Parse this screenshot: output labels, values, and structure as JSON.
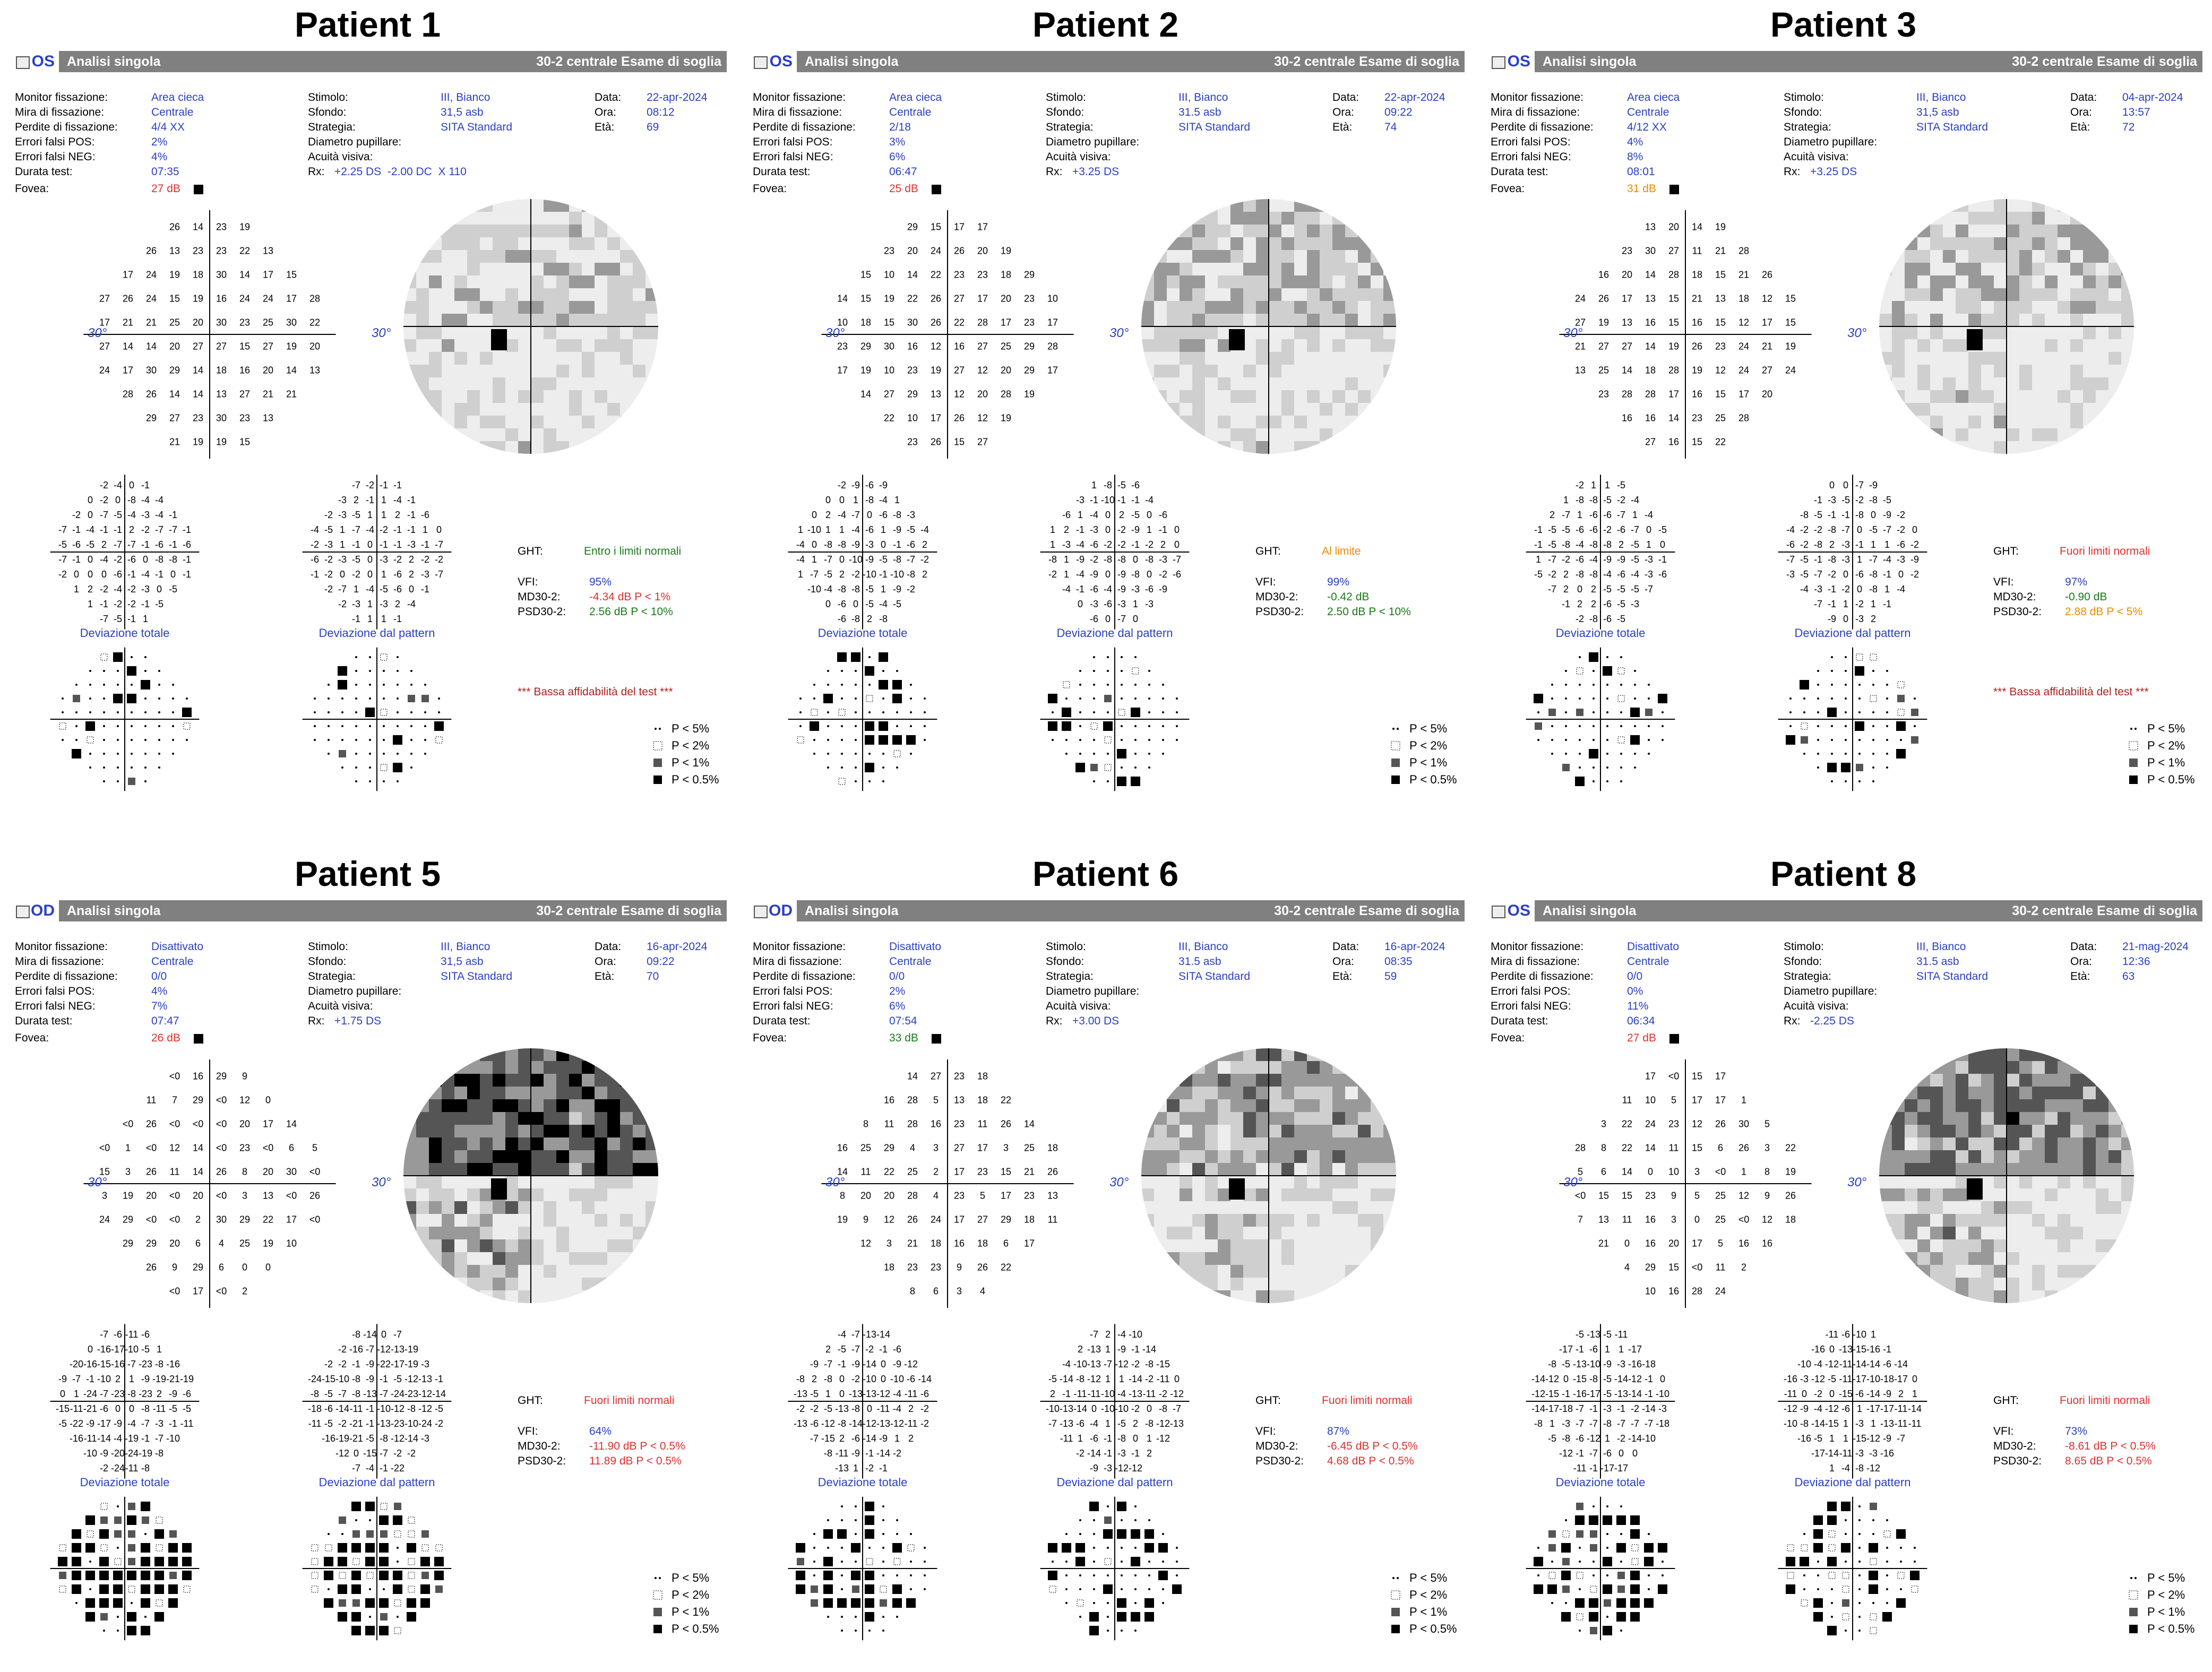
{
  "header_labels": {
    "monitor": "Monitor fissazione:",
    "mira": "Mira di fissazione:",
    "perdite": "Perdite di fissazione:",
    "fpos": "Errori falsi POS:",
    "fneg": "Errori falsi NEG:",
    "durata": "Durata test:",
    "fovea": "Fovea:",
    "stimolo": "Stimolo:",
    "sfondo": "Sfondo:",
    "strategia": "Strategia:",
    "diametro": "Diametro pupillare:",
    "acuita": "Acuità visiva:",
    "rx": "Rx:",
    "data": "Data:",
    "ora": "Ora:",
    "eta": "Età:",
    "ght": "GHT:",
    "vfi": "VFI:",
    "md": "MD30-2:",
    "psd": "PSD30-2:",
    "dev_totale": "Deviazione totale",
    "dev_pattern": "Deviazione dal pattern",
    "deg": "30°",
    "bar_left": "Analisi singola",
    "bar_right": "30-2 centrale Esame di soglia"
  },
  "legend": [
    "P < 5%",
    "P < 2%",
    "P < 1%",
    "P < 0.5%"
  ],
  "colors": {
    "blue": "#2a3fc4",
    "red": "#e03030",
    "green": "#1a7a1a",
    "orange": "#f08a00",
    "bar": "#808080"
  },
  "patients": [
    {
      "title": "Patient 1",
      "eye": "OS",
      "monitor": "Area cieca",
      "mira": "Centrale",
      "perdite": "4/4 XX",
      "fpos": "2%",
      "fneg": "4%",
      "durata": "07:35",
      "fovea": "27 dB",
      "fovea_color": "red",
      "stimolo": "III, Bianco",
      "sfondo": "31,5 asb",
      "strategia": "SITA Standard",
      "diametro": "",
      "acuita": "",
      "rx": "+2.25 DS  -2.00 DC  X 110",
      "data": "22-apr-2024",
      "ora": "08:12",
      "eta": "69",
      "ght": "Entro i limiti normali",
      "ght_color": "green",
      "vfi": "95%",
      "md": "-4.34 dB P < 1%",
      "md_color": "red",
      "psd": "2.56 dB P < 10%",
      "psd_color": "green",
      "warning": "*** Bassa affidabilità del test ***"
    },
    {
      "title": "Patient 2",
      "eye": "OS",
      "monitor": "Area cieca",
      "mira": "Centrale",
      "perdite": "2/18",
      "fpos": "3%",
      "fneg": "6%",
      "durata": "06:47",
      "fovea": "25 dB",
      "fovea_color": "red",
      "stimolo": "III, Bianco",
      "sfondo": "31.5 asb",
      "strategia": "SITA Standard",
      "diametro": "",
      "acuita": "",
      "rx": "+3.25 DS",
      "data": "22-apr-2024",
      "ora": "09:22",
      "eta": "74",
      "ght": "Al limite",
      "ght_color": "orange",
      "vfi": "99%",
      "md": "-0.42 dB",
      "md_color": "green",
      "psd": "2.50 dB P < 10%",
      "psd_color": "green",
      "warning": ""
    },
    {
      "title": "Patient 3",
      "eye": "OS",
      "monitor": "Area cieca",
      "mira": "Centrale",
      "perdite": "4/12 XX",
      "fpos": "4%",
      "fneg": "8%",
      "durata": "08:01",
      "fovea": "31 dB",
      "fovea_color": "orange",
      "stimolo": "III, Bianco",
      "sfondo": "31,5 asb",
      "strategia": "SITA Standard",
      "diametro": "",
      "acuita": "",
      "rx": "+3.25 DS",
      "data": "04-apr-2024",
      "ora": "13:57",
      "eta": "72",
      "ght": "Fuori limiti normali",
      "ght_color": "red",
      "vfi": "97%",
      "md": "-0.90 dB",
      "md_color": "green",
      "psd": "2.88 dB P < 5%",
      "psd_color": "orange",
      "warning": "*** Bassa affidabilità del test ***"
    },
    {
      "title": "Patient 5",
      "eye": "OD",
      "monitor": "Disattivato",
      "mira": "Centrale",
      "perdite": "0/0",
      "fpos": "4%",
      "fneg": "7%",
      "durata": "07:47",
      "fovea": "26 dB",
      "fovea_color": "red",
      "stimolo": "III, Bianco",
      "sfondo": "31,5 asb",
      "strategia": "SITA Standard",
      "diametro": "",
      "acuita": "",
      "rx": "+1.75 DS",
      "data": "16-apr-2024",
      "ora": "09:22",
      "eta": "70",
      "ght": "Fuori limiti normali",
      "ght_color": "red",
      "vfi": "64%",
      "md": "-11.90 dB P < 0.5%",
      "md_color": "red",
      "psd": "11.89 dB P < 0.5%",
      "psd_color": "red",
      "warning": ""
    },
    {
      "title": "Patient 6",
      "eye": "OD",
      "monitor": "Disattivato",
      "mira": "Centrale",
      "perdite": "0/0",
      "fpos": "2%",
      "fneg": "6%",
      "durata": "07:54",
      "fovea": "33 dB",
      "fovea_color": "green",
      "stimolo": "III, Bianco",
      "sfondo": "31.5 asb",
      "strategia": "SITA Standard",
      "diametro": "",
      "acuita": "",
      "rx": "+3.00 DS",
      "data": "16-apr-2024",
      "ora": "08:35",
      "eta": "59",
      "ght": "Fuori limiti normali",
      "ght_color": "red",
      "vfi": "87%",
      "md": "-6.45 dB P < 0.5%",
      "md_color": "red",
      "psd": "4.68 dB P < 0.5%",
      "psd_color": "red",
      "warning": ""
    },
    {
      "title": "Patient 8",
      "eye": "OS",
      "monitor": "Disattivato",
      "mira": "Centrale",
      "perdite": "0/0",
      "fpos": "0%",
      "fneg": "11%",
      "durata": "06:34",
      "fovea": "27 dB",
      "fovea_color": "red",
      "stimolo": "III, Bianco",
      "sfondo": "31.5 asb",
      "strategia": "SITA Standard",
      "diametro": "",
      "acuita": "",
      "rx": "-2.25 DS",
      "data": "21-mag-2024",
      "ora": "12:36",
      "eta": "63",
      "ght": "Fuori limiti normali",
      "ght_color": "red",
      "vfi": "73%",
      "md": "-8.61 dB P < 0.5%",
      "md_color": "red",
      "psd": "8.65 dB P < 0.5%",
      "psd_color": "red",
      "warning": ""
    }
  ]
}
